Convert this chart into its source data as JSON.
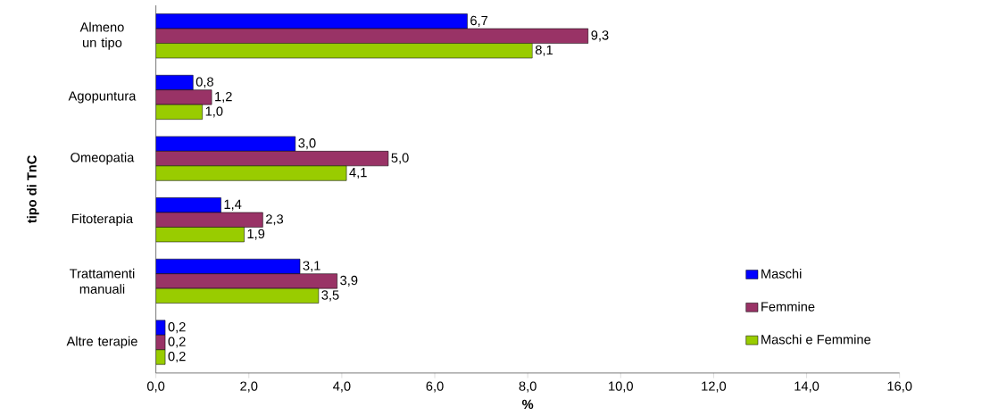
{
  "chart_data": {
    "type": "bar",
    "orientation": "horizontal",
    "xlabel": "%",
    "ylabel": "tipo di TnC",
    "categories": [
      "Almeno un tipo",
      "Agopuntura",
      "Omeopatia",
      "Fitoterapia",
      "Trattamenti manuali",
      "Altre terapie"
    ],
    "series": [
      {
        "name": "Maschi",
        "color": "#0000ff",
        "values": [
          6.7,
          0.8,
          3.0,
          1.4,
          3.1,
          0.2
        ],
        "value_labels": [
          "6,7",
          "0,8",
          "3,0",
          "1,4",
          "3,1",
          "0,2"
        ]
      },
      {
        "name": "Femmine",
        "color": "#993366",
        "values": [
          9.3,
          1.2,
          5.0,
          2.3,
          3.9,
          0.2
        ],
        "value_labels": [
          "9,3",
          "1,2",
          "5,0",
          "2,3",
          "3,9",
          "0,2"
        ]
      },
      {
        "name": "Maschi e Femmine",
        "color": "#99cc00",
        "values": [
          8.1,
          1.0,
          4.1,
          1.9,
          3.5,
          0.2
        ],
        "value_labels": [
          "8,1",
          "1,0",
          "4,1",
          "1,9",
          "3,5",
          "0,2"
        ]
      }
    ],
    "xlim": [
      0,
      16
    ],
    "xticks": [
      {
        "value": 0,
        "label": "0,0"
      },
      {
        "value": 2,
        "label": "2,0"
      },
      {
        "value": 4,
        "label": "4,0"
      },
      {
        "value": 6,
        "label": "6,0"
      },
      {
        "value": 8,
        "label": "8,0"
      },
      {
        "value": 10,
        "label": "10,0"
      },
      {
        "value": 12,
        "label": "12,0"
      },
      {
        "value": 14,
        "label": "14,0"
      },
      {
        "value": 16,
        "label": "16,0"
      }
    ],
    "legend": "bottom right",
    "grid": false
  }
}
